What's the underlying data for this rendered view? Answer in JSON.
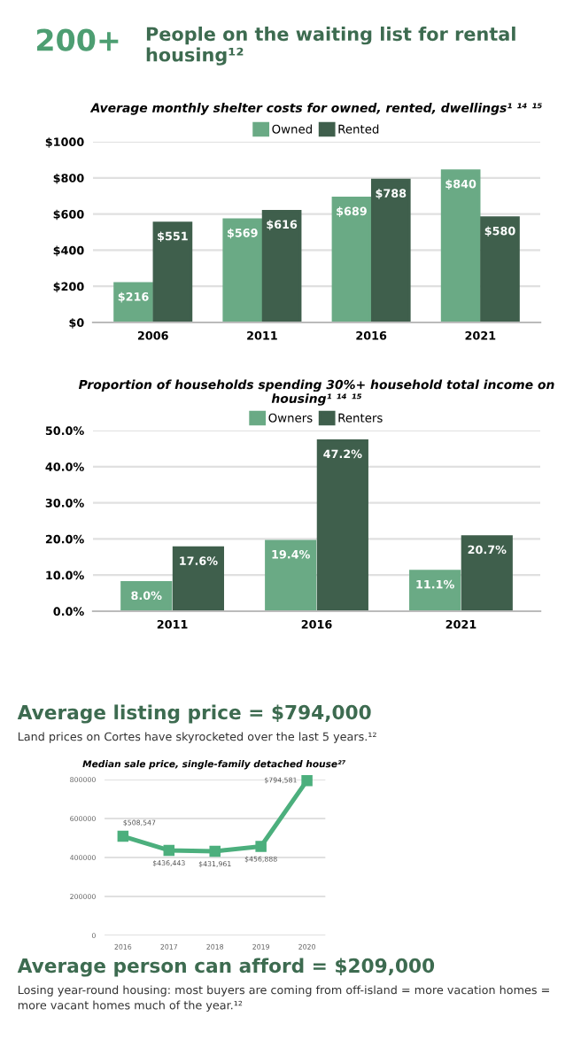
{
  "chart_data": [
    {
      "type": "other",
      "title": "200+",
      "subtitle": "People on the waiting list for rental housing¹²"
    },
    {
      "type": "bar",
      "title": "Average monthly shelter costs for owned, rented, dwellings¹ ¹⁴ ¹⁵",
      "categories": [
        "2006",
        "2011",
        "2016",
        "2021"
      ],
      "series": [
        {
          "name": "Owned",
          "color": "#6aaa85",
          "values": [
            216,
            569,
            689,
            840
          ],
          "value_labels": [
            "$216",
            "$569",
            "$689",
            "$840"
          ]
        },
        {
          "name": "Rented",
          "color": "#3f5f4c",
          "values": [
            551,
            616,
            788,
            580
          ],
          "value_labels": [
            "$551",
            "$616",
            "$788",
            "$580"
          ]
        }
      ],
      "ylim": [
        0,
        1000
      ],
      "yticks": [
        {
          "value": 0,
          "label": "$0"
        },
        {
          "value": 200,
          "label": "$200"
        },
        {
          "value": 400,
          "label": "$400"
        },
        {
          "value": 600,
          "label": "$600"
        },
        {
          "value": 800,
          "label": "$800"
        },
        {
          "value": 1000,
          "label": "$1000"
        }
      ],
      "grid": "y",
      "legend": "top"
    },
    {
      "type": "bar",
      "title": "Proportion of households spending 30%+ household total income on housing¹ ¹⁴ ¹⁵",
      "categories": [
        "2011",
        "2016",
        "2021"
      ],
      "series": [
        {
          "name": "Owners",
          "color": "#6aaa85",
          "values": [
            8.0,
            19.4,
            11.1
          ],
          "value_labels": [
            "8.0%",
            "19.4%",
            "11.1%"
          ]
        },
        {
          "name": "Renters",
          "color": "#3f5f4c",
          "values": [
            17.6,
            47.2,
            20.7
          ],
          "value_labels": [
            "17.6%",
            "47.2%",
            "20.7%"
          ]
        }
      ],
      "ylim": [
        0,
        50
      ],
      "yticks": [
        {
          "value": 0,
          "label": "0.0%"
        },
        {
          "value": 10,
          "label": "10.0%"
        },
        {
          "value": 20,
          "label": "20.0%"
        },
        {
          "value": 30,
          "label": "30.0%"
        },
        {
          "value": 40,
          "label": "40.0%"
        },
        {
          "value": 50,
          "label": "50.0%"
        }
      ],
      "grid": "y",
      "legend": "top"
    },
    {
      "type": "other",
      "title": "Average listing price = $794,000",
      "subtitle": "Land prices on Cortes have skyrocketed over the last 5 years.¹²"
    },
    {
      "type": "line",
      "title": "Median sale price, single-family detached house²⁷",
      "categories": [
        "2016",
        "2017",
        "2018",
        "2019",
        "2020"
      ],
      "series": [
        {
          "color": "#4caf7d",
          "values": [
            508547,
            436443,
            431961,
            456888,
            794581
          ],
          "value_labels": [
            "$508,547",
            "$436,443",
            "$431,961",
            "$456,888",
            "$794,581"
          ]
        }
      ],
      "ylim": [
        0,
        800000
      ],
      "yticks": [
        0,
        200000,
        400000,
        600000,
        800000
      ],
      "grid": "y",
      "marker": "square"
    },
    {
      "type": "other",
      "title": "Average person can afford = $209,000",
      "subtitle": "Losing year-round housing: most buyers are coming from off-island = more vacation homes = more vacant homes much of the year.¹²"
    }
  ]
}
